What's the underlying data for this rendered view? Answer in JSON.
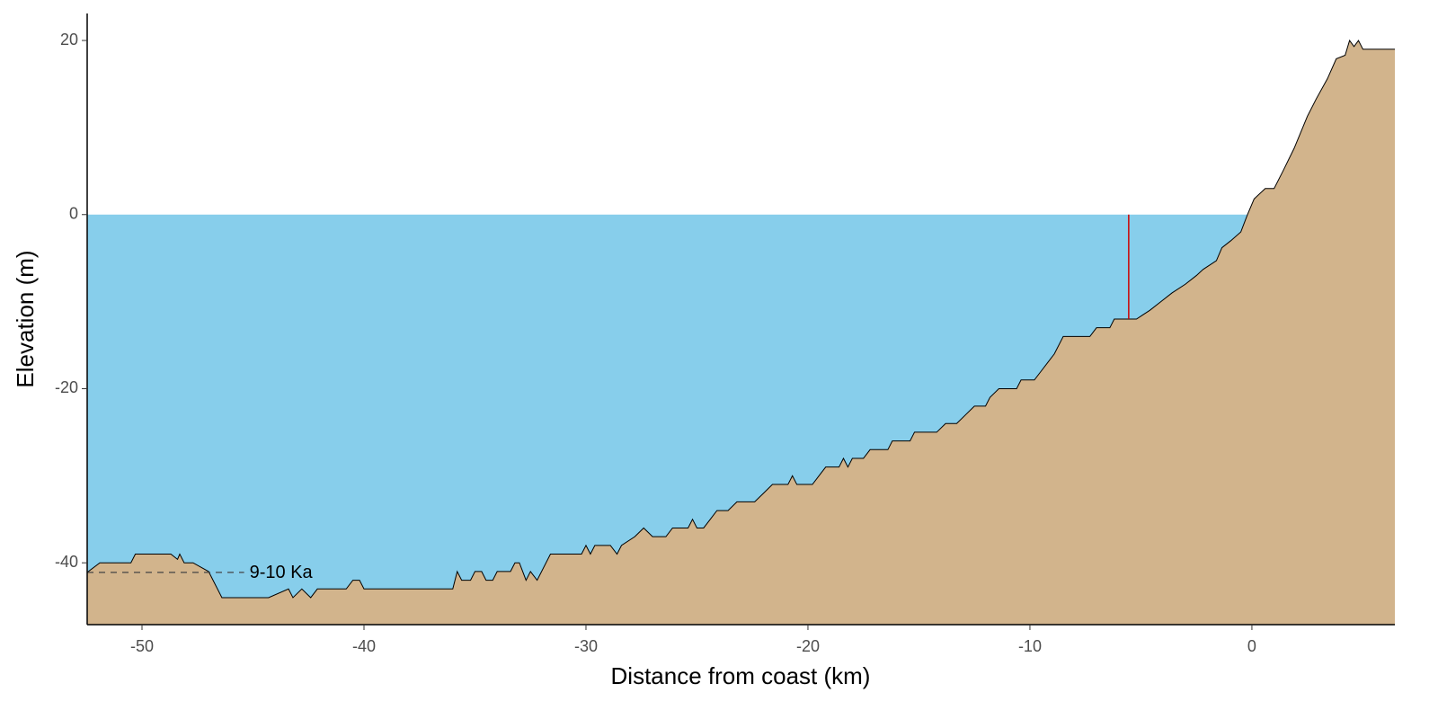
{
  "chart_data": {
    "type": "area",
    "x_label": "Distance from coast (km)",
    "y_label": "Elevation (m)",
    "x": [
      -52.47,
      -51.9,
      -50.5,
      -50.3,
      -48.7,
      -48.4,
      -48.3,
      -48.1,
      -47.7,
      -47.0,
      -46.4,
      -44.3,
      -43.4,
      -43.2,
      -42.8,
      -42.4,
      -42.1,
      -40.8,
      -40.5,
      -40.2,
      -40.0,
      -36.0,
      -35.8,
      -35.6,
      -35.2,
      -35.0,
      -34.7,
      -34.5,
      -34.2,
      -34.0,
      -33.4,
      -33.2,
      -33.0,
      -32.7,
      -32.5,
      -32.2,
      -31.6,
      -30.2,
      -30.0,
      -29.8,
      -29.6,
      -28.9,
      -28.6,
      -28.4,
      -27.8,
      -27.4,
      -27.0,
      -26.4,
      -26.1,
      -25.4,
      -25.2,
      -25.0,
      -24.7,
      -24.4,
      -24.1,
      -23.6,
      -23.2,
      -22.4,
      -22.0,
      -21.6,
      -20.9,
      -20.7,
      -20.5,
      -19.8,
      -19.5,
      -19.2,
      -18.6,
      -18.4,
      -18.2,
      -18.0,
      -17.5,
      -17.2,
      -16.4,
      -16.2,
      -15.4,
      -15.2,
      -14.2,
      -13.8,
      -13.3,
      -12.9,
      -12.5,
      -12.0,
      -11.8,
      -11.4,
      -10.6,
      -10.4,
      -9.8,
      -9.5,
      -9.2,
      -8.9,
      -8.5,
      -7.3,
      -7.0,
      -6.4,
      -6.2,
      -5.2,
      -4.6,
      -4.1,
      -3.6,
      -3.0,
      -2.5,
      -2.2,
      -1.6,
      -1.35,
      -0.95,
      -0.5,
      -0.2,
      0.1,
      0.6,
      1.0,
      1.4,
      1.9,
      2.5,
      2.9,
      3.4,
      3.8,
      4.2,
      4.4,
      4.6,
      4.8,
      5.0,
      6.44
    ],
    "values": [
      -41.1,
      -40,
      -40,
      -39,
      -39,
      -39.6,
      -39,
      -40,
      -40,
      -41,
      -44,
      -44,
      -43,
      -44,
      -43,
      -44,
      -43,
      -43,
      -42,
      -42,
      -43,
      -43,
      -41,
      -42,
      -42,
      -41,
      -41,
      -42,
      -42,
      -41,
      -41,
      -40,
      -40,
      -42,
      -41,
      -42,
      -39,
      -39,
      -38,
      -39,
      -38,
      -38,
      -39,
      -38,
      -37,
      -36,
      -37,
      -37,
      -36,
      -36,
      -35,
      -36,
      -36,
      -35,
      -34,
      -34,
      -33,
      -33,
      -32,
      -31,
      -31,
      -30,
      -31,
      -31,
      -30,
      -29,
      -29,
      -28,
      -29,
      -28,
      -28,
      -27,
      -27,
      -26,
      -26,
      -25,
      -25,
      -24,
      -24,
      -23,
      -22,
      -22,
      -21,
      -20,
      -20,
      -19,
      -19,
      -18,
      -17,
      -16,
      -14,
      -14,
      -13,
      -13,
      -12,
      -12,
      -11,
      -10,
      -9,
      -8,
      -7,
      -6.3,
      -5.3,
      -3.8,
      -3,
      -2,
      0,
      1.8,
      3,
      3,
      5,
      7.6,
      11.3,
      13.3,
      15.6,
      17.9,
      18.3,
      20,
      19.3,
      20,
      19,
      19
    ],
    "color": "#d2b48c",
    "sea_level": 0,
    "water_color": "#87ceeb",
    "marker": {
      "x": -5.55,
      "y": [
        0,
        -12
      ],
      "color": "#cc0000"
    },
    "reference": {
      "label": "9-10 Ka",
      "y": -41.1,
      "x": [
        -52.47,
        -45.4
      ]
    },
    "xlim": [
      -52.47,
      6.44
    ],
    "ylim": [
      -47.1,
      23.1
    ],
    "xticks": [
      -50,
      -40,
      -30,
      -20,
      -10,
      0
    ],
    "yticks": [
      -40,
      -20,
      0,
      20
    ],
    "grid": false
  }
}
